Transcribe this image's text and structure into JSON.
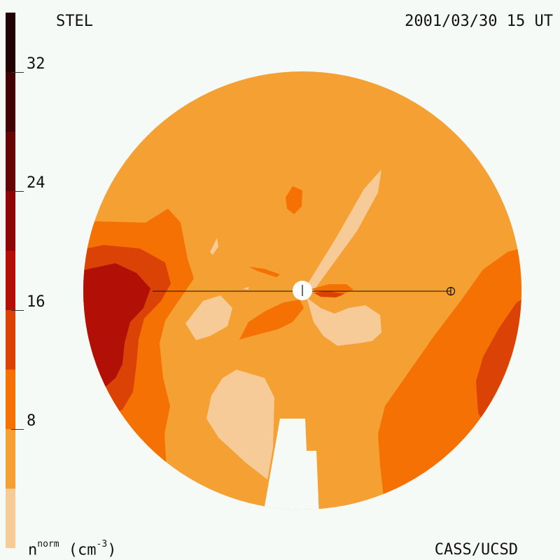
{
  "header": {
    "source": "STEL",
    "datetime": "2001/03/30 15 UT"
  },
  "footer": {
    "unit_base": "n",
    "unit_sup": "norm",
    "unit_rest": " (cm",
    "unit_exp": "-3",
    "unit_close": ")",
    "credit": "CASS/UCSD"
  },
  "colorbar": {
    "ticks": [
      "8",
      "16",
      "24",
      "32"
    ],
    "levels": [
      {
        "from": 0,
        "to": 4,
        "color": "#f7cb98"
      },
      {
        "from": 4,
        "to": 8,
        "color": "#f5a033"
      },
      {
        "from": 8,
        "to": 12,
        "color": "#f67104"
      },
      {
        "from": 12,
        "to": 16,
        "color": "#db4306"
      },
      {
        "from": 16,
        "to": 20,
        "color": "#b21006"
      },
      {
        "from": 20,
        "to": 24,
        "color": "#8d0505"
      },
      {
        "from": 24,
        "to": 28,
        "color": "#650405"
      },
      {
        "from": 28,
        "to": 32,
        "color": "#400204"
      },
      {
        "from": 32,
        "to": 36,
        "color": "#220103"
      }
    ],
    "range": [
      0,
      36
    ]
  },
  "colors": {
    "background": "#f6faf6",
    "level_0": "#f7cb98",
    "level_1": "#f5a033",
    "level_2": "#f67104",
    "level_3": "#db4306",
    "level_4": "#b21006",
    "level_5": "#8d0505"
  },
  "markers": {
    "sun": "sun-symbol",
    "earth": "earth-symbol"
  }
}
